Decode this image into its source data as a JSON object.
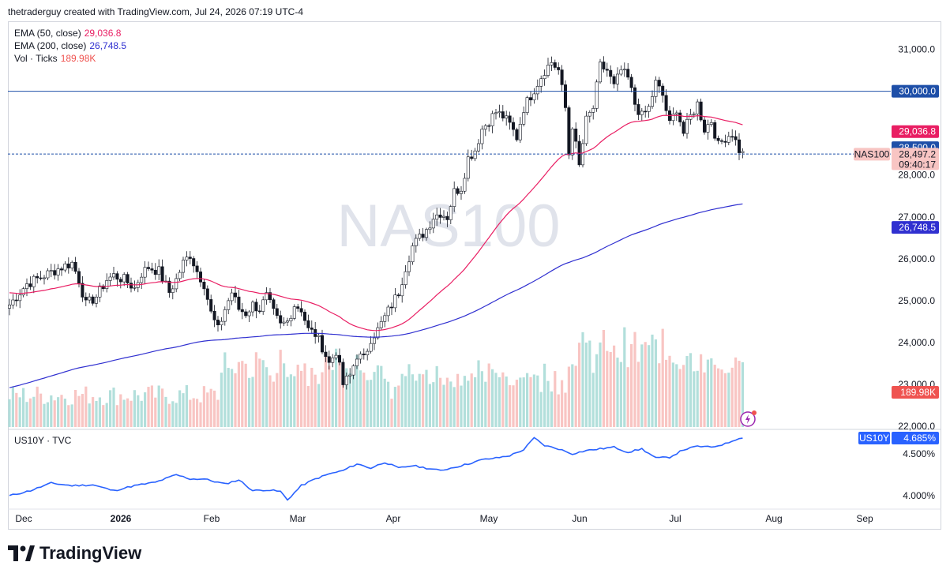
{
  "header": {
    "attribution": "thetraderguy created with TradingView.com, Jul 24, 2026 07:19 UTC-4"
  },
  "brand": {
    "name": "TradingView",
    "logo_icon": "tradingview-logo-icon"
  },
  "colors": {
    "up": "#26a69a",
    "down": "#ef5350",
    "ema50": "#e91e63",
    "ema200": "#3030d0",
    "us10y": "#2962ff",
    "hline": "#1e4fa8"
  },
  "legend": {
    "ema50": {
      "label": "EMA (50, close)",
      "value": "29,036.8"
    },
    "ema200": {
      "label": "EMA (200, close)",
      "value": "26,748.5"
    },
    "vol": {
      "label": "Vol · Ticks",
      "value": "189.98K"
    }
  },
  "watermark": "NAS100",
  "price_scale": {
    "ticks": [
      "31,000.0",
      "28,000.0",
      "27,000.0",
      "26,000.0",
      "25,000.0",
      "24,000.0",
      "23,000.0",
      "22,000.0"
    ]
  },
  "price_labels": {
    "level_30000": "30,000.0",
    "ema50": "29,036.8",
    "level_28500": "28,500.0",
    "symbol": "NAS100",
    "last_price": "28,497.2",
    "countdown": "09:40:17",
    "ema200": "26,748.5",
    "volume": "189.98K"
  },
  "sub_pane": {
    "title": "US10Y · TVC",
    "last_label": "US10Y",
    "last_value": "4.685%",
    "ticks": [
      "4.500%",
      "4.000%"
    ]
  },
  "time_axis": [
    "Dec",
    "2026",
    "Feb",
    "Mar",
    "Apr",
    "May",
    "Jun",
    "Jul",
    "Aug",
    "Sep"
  ],
  "chart_data": {
    "type": "candlestick",
    "symbol": "NAS100",
    "ylim": [
      22000,
      31500
    ],
    "horizontal_lines": [
      30000,
      28500
    ],
    "ohlc_anchors_close": [
      [
        0,
        24900
      ],
      [
        5,
        25400
      ],
      [
        10,
        25600
      ],
      [
        15,
        25800
      ],
      [
        18,
        25900
      ],
      [
        20,
        25500
      ],
      [
        22,
        24900
      ],
      [
        25,
        25100
      ],
      [
        28,
        25500
      ],
      [
        30,
        25600
      ],
      [
        33,
        25500
      ],
      [
        36,
        25300
      ],
      [
        38,
        25650
      ],
      [
        40,
        25800
      ],
      [
        43,
        25700
      ],
      [
        46,
        25200
      ],
      [
        48,
        25500
      ],
      [
        50,
        25900
      ],
      [
        52,
        26100
      ],
      [
        54,
        25700
      ],
      [
        56,
        25400
      ],
      [
        58,
        24700
      ],
      [
        60,
        24300
      ],
      [
        62,
        24800
      ],
      [
        64,
        25200
      ],
      [
        66,
        24800
      ],
      [
        68,
        24700
      ],
      [
        70,
        24900
      ],
      [
        72,
        24800
      ],
      [
        74,
        25100
      ],
      [
        76,
        24700
      ],
      [
        78,
        24400
      ],
      [
        80,
        24500
      ],
      [
        82,
        24900
      ],
      [
        84,
        24800
      ],
      [
        86,
        24300
      ],
      [
        88,
        24200
      ],
      [
        90,
        23900
      ],
      [
        92,
        23500
      ],
      [
        94,
        23800
      ],
      [
        96,
        23000
      ],
      [
        98,
        23200
      ],
      [
        100,
        23700
      ],
      [
        102,
        23600
      ],
      [
        104,
        24100
      ],
      [
        106,
        24300
      ],
      [
        108,
        24600
      ],
      [
        110,
        24900
      ],
      [
        112,
        25200
      ],
      [
        114,
        25800
      ],
      [
        116,
        26300
      ],
      [
        118,
        26500
      ],
      [
        120,
        26700
      ],
      [
        122,
        27000
      ],
      [
        124,
        27100
      ],
      [
        126,
        27000
      ],
      [
        128,
        27600
      ],
      [
        130,
        27700
      ],
      [
        132,
        28400
      ],
      [
        134,
        28600
      ],
      [
        136,
        29100
      ],
      [
        138,
        29300
      ],
      [
        140,
        29500
      ],
      [
        142,
        29400
      ],
      [
        144,
        29200
      ],
      [
        146,
        28900
      ],
      [
        148,
        29600
      ],
      [
        150,
        29900
      ],
      [
        152,
        30200
      ],
      [
        154,
        30500
      ],
      [
        156,
        30700
      ],
      [
        158,
        30500
      ],
      [
        160,
        29600
      ],
      [
        161,
        28500
      ],
      [
        162,
        29200
      ],
      [
        164,
        28200
      ],
      [
        166,
        29300
      ],
      [
        168,
        29600
      ],
      [
        170,
        30600
      ],
      [
        172,
        30500
      ],
      [
        174,
        30100
      ],
      [
        176,
        30500
      ],
      [
        178,
        30300
      ],
      [
        180,
        29700
      ],
      [
        182,
        29400
      ],
      [
        184,
        29600
      ],
      [
        186,
        30200
      ],
      [
        188,
        29900
      ],
      [
        190,
        29200
      ],
      [
        192,
        29600
      ],
      [
        194,
        29000
      ],
      [
        196,
        29400
      ],
      [
        198,
        29700
      ],
      [
        200,
        29100
      ],
      [
        202,
        29300
      ],
      [
        204,
        28700
      ],
      [
        206,
        28900
      ],
      [
        208,
        29000
      ],
      [
        210,
        28600
      ],
      [
        211,
        28500
      ]
    ],
    "volume_ylim": [
      0,
      400
    ],
    "series": [
      {
        "name": "EMA (50, close)",
        "last": 29036.8
      },
      {
        "name": "EMA (200, close)",
        "last": 26748.5
      },
      {
        "name": "Vol · Ticks",
        "last": 189980
      },
      {
        "name": "US10Y · TVC",
        "last": 4.685,
        "ylim": [
          3.9,
          4.8
        ],
        "anchors": [
          [
            0,
            4.0
          ],
          [
            6,
            4.06
          ],
          [
            12,
            4.15
          ],
          [
            18,
            4.12
          ],
          [
            24,
            4.13
          ],
          [
            30,
            4.06
          ],
          [
            36,
            4.12
          ],
          [
            42,
            4.16
          ],
          [
            48,
            4.25
          ],
          [
            52,
            4.2
          ],
          [
            56,
            4.2
          ],
          [
            62,
            4.14
          ],
          [
            66,
            4.19
          ],
          [
            70,
            4.06
          ],
          [
            74,
            4.07
          ],
          [
            78,
            4.05
          ],
          [
            80,
            3.95
          ],
          [
            84,
            4.12
          ],
          [
            88,
            4.2
          ],
          [
            92,
            4.26
          ],
          [
            96,
            4.3
          ],
          [
            100,
            4.38
          ],
          [
            104,
            4.33
          ],
          [
            108,
            4.4
          ],
          [
            112,
            4.33
          ],
          [
            116,
            4.36
          ],
          [
            120,
            4.33
          ],
          [
            124,
            4.3
          ],
          [
            128,
            4.34
          ],
          [
            132,
            4.38
          ],
          [
            136,
            4.43
          ],
          [
            140,
            4.45
          ],
          [
            144,
            4.48
          ],
          [
            148,
            4.55
          ],
          [
            151,
            4.69
          ],
          [
            154,
            4.6
          ],
          [
            158,
            4.56
          ],
          [
            162,
            4.5
          ],
          [
            166,
            4.54
          ],
          [
            170,
            4.56
          ],
          [
            174,
            4.58
          ],
          [
            178,
            4.52
          ],
          [
            182,
            4.56
          ],
          [
            186,
            4.45
          ],
          [
            190,
            4.46
          ],
          [
            194,
            4.55
          ],
          [
            198,
            4.59
          ],
          [
            202,
            4.58
          ],
          [
            206,
            4.62
          ],
          [
            210,
            4.69
          ],
          [
            211,
            4.685
          ]
        ]
      }
    ]
  }
}
